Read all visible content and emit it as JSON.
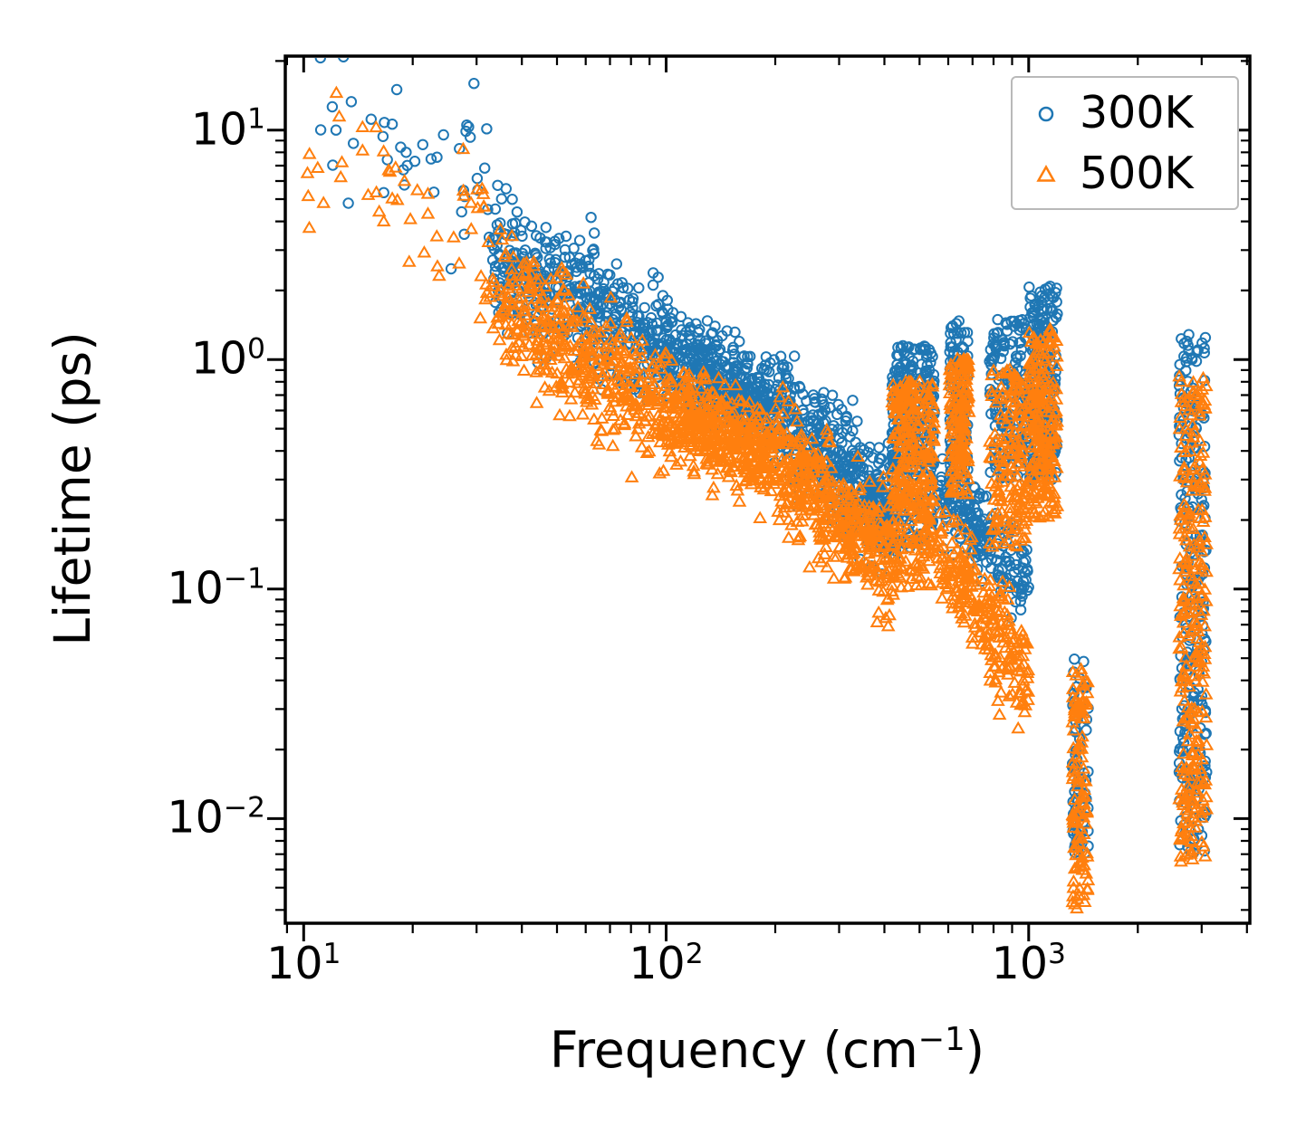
{
  "figure": {
    "background": "#ffffff"
  },
  "chart_data": {
    "type": "scatter",
    "title": "",
    "xlabel_parts": {
      "prefix": "Frequency (cm",
      "sup": "−1",
      "suffix": ")"
    },
    "ylabel": "Lifetime (ps)",
    "x_scale": "log",
    "y_scale": "log",
    "xlim": [
      8.9,
      4075
    ],
    "ylim": [
      0.0035,
      21
    ],
    "grid": false,
    "legend_position": "upper right",
    "x_ticks": [
      {
        "v": 10,
        "exp": "1"
      },
      {
        "v": 100,
        "exp": "2"
      },
      {
        "v": 1000,
        "exp": "3"
      }
    ],
    "y_ticks": [
      {
        "v": 10,
        "exp": "1"
      },
      {
        "v": 1,
        "exp": "0"
      },
      {
        "v": 0.1,
        "exp": "−1"
      },
      {
        "v": 0.01,
        "exp": "−2"
      }
    ],
    "series": [
      {
        "name": "300K",
        "marker": "circle",
        "color": "#1f77b4",
        "seed": 42,
        "clusters": [
          {
            "mode": "trend",
            "x0": 11,
            "x1": 33,
            "y0": 12,
            "y1": 4.5,
            "sd": 0.18,
            "n": 40
          },
          {
            "mode": "band",
            "x0": 27,
            "x1": 32,
            "ylo": 9,
            "yhi": 16,
            "n": 6
          },
          {
            "mode": "band",
            "x0": 55,
            "x1": 65,
            "ylo": 2.5,
            "yhi": 4.5,
            "n": 5
          },
          {
            "mode": "trend",
            "x0": 33,
            "x1": 100,
            "y0": 2.9,
            "y1": 1.05,
            "sd": 0.13,
            "n": 420
          },
          {
            "mode": "trend",
            "x0": 100,
            "x1": 200,
            "y0": 1.05,
            "y1": 0.62,
            "sd": 0.1,
            "n": 420
          },
          {
            "mode": "trend",
            "x0": 200,
            "x1": 430,
            "y0": 0.62,
            "y1": 0.2,
            "sd": 0.12,
            "n": 420
          },
          {
            "mode": "band",
            "x0": 420,
            "x1": 550,
            "ylo": 0.35,
            "yhi": 1.15,
            "n": 220
          },
          {
            "mode": "band",
            "x0": 420,
            "x1": 545,
            "ylo": 0.15,
            "yhi": 0.4,
            "n": 90
          },
          {
            "mode": "band",
            "x0": 605,
            "x1": 680,
            "ylo": 0.3,
            "yhi": 1.5,
            "n": 120
          },
          {
            "mode": "trend",
            "x0": 560,
            "x1": 1000,
            "y0": 0.27,
            "y1": 0.11,
            "sd": 0.09,
            "n": 200
          },
          {
            "mode": "band",
            "x0": 780,
            "x1": 1000,
            "ylo": 0.3,
            "yhi": 1.5,
            "n": 160
          },
          {
            "mode": "band",
            "x0": 1000,
            "x1": 1200,
            "ylo": 0.3,
            "yhi": 2.1,
            "n": 220
          },
          {
            "mode": "band",
            "x0": 1320,
            "x1": 1460,
            "ylo": 0.007,
            "yhi": 0.05,
            "n": 80
          },
          {
            "mode": "band",
            "x0": 2600,
            "x1": 3100,
            "ylo": 0.007,
            "yhi": 1.3,
            "n": 260
          }
        ]
      },
      {
        "name": "500K",
        "marker": "triangle",
        "color": "#ff7f0e",
        "seed": 7,
        "clusters": [
          {
            "mode": "trend",
            "x0": 10,
            "x1": 33,
            "y0": 7,
            "y1": 2.6,
            "sd": 0.16,
            "n": 45
          },
          {
            "mode": "band",
            "x0": 27,
            "x1": 32,
            "ylo": 4,
            "yhi": 9,
            "n": 8
          },
          {
            "mode": "trend",
            "x0": 33,
            "x1": 100,
            "y0": 1.9,
            "y1": 0.6,
            "sd": 0.13,
            "n": 420
          },
          {
            "mode": "trend",
            "x0": 100,
            "x1": 200,
            "y0": 0.6,
            "y1": 0.37,
            "sd": 0.1,
            "n": 420
          },
          {
            "mode": "trend",
            "x0": 200,
            "x1": 430,
            "y0": 0.37,
            "y1": 0.125,
            "sd": 0.12,
            "n": 420
          },
          {
            "mode": "band",
            "x0": 420,
            "x1": 550,
            "ylo": 0.22,
            "yhi": 0.8,
            "n": 220
          },
          {
            "mode": "band",
            "x0": 420,
            "x1": 545,
            "ylo": 0.1,
            "yhi": 0.25,
            "n": 100
          },
          {
            "mode": "band",
            "x0": 605,
            "x1": 685,
            "ylo": 0.25,
            "yhi": 1.0,
            "n": 150
          },
          {
            "mode": "trend",
            "x0": 560,
            "x1": 1000,
            "y0": 0.16,
            "y1": 0.04,
            "sd": 0.12,
            "n": 240
          },
          {
            "mode": "band",
            "x0": 780,
            "x1": 1000,
            "ylo": 0.15,
            "yhi": 0.9,
            "n": 160
          },
          {
            "mode": "band",
            "x0": 1000,
            "x1": 1200,
            "ylo": 0.2,
            "yhi": 1.35,
            "n": 220
          },
          {
            "mode": "band",
            "x0": 1320,
            "x1": 1460,
            "ylo": 0.004,
            "yhi": 0.045,
            "n": 120
          },
          {
            "mode": "band",
            "x0": 2600,
            "x1": 3100,
            "ylo": 0.006,
            "yhi": 0.85,
            "n": 280
          }
        ]
      }
    ]
  }
}
